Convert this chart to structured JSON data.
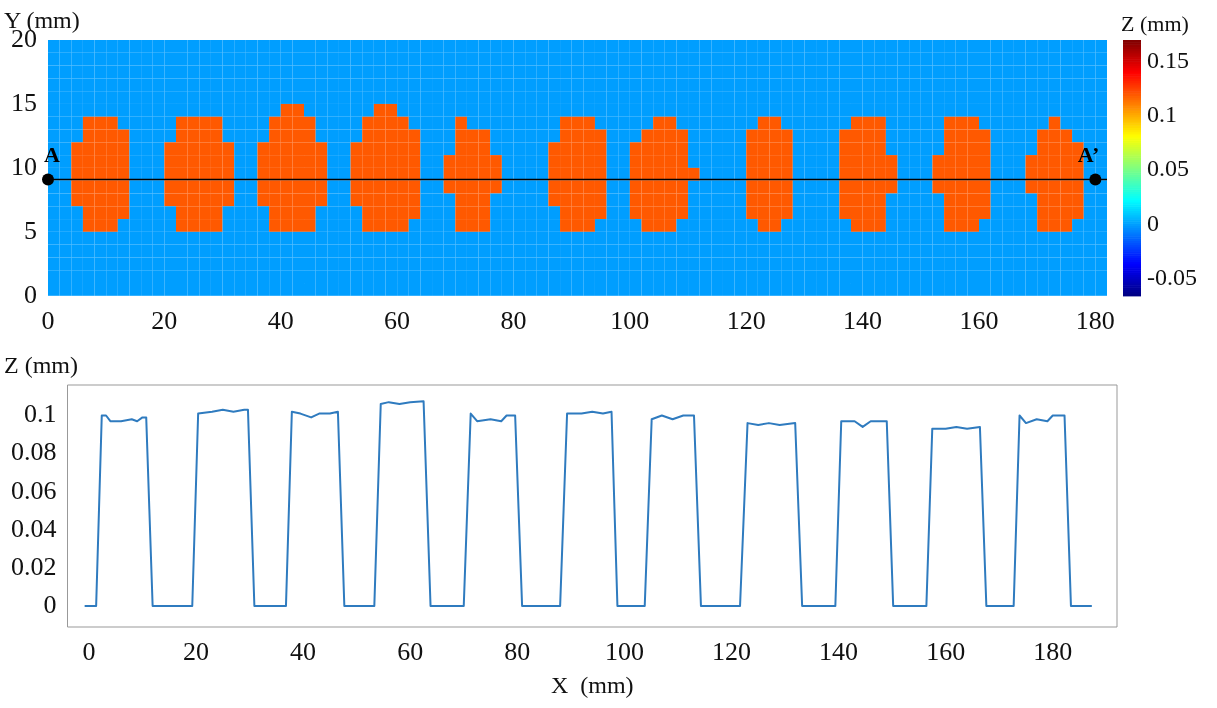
{
  "chart_data": [
    {
      "type": "heatmap",
      "ylabel": "Y (mm)",
      "clabel": "Z (mm)",
      "xlim": [
        0,
        182
      ],
      "ylim": [
        0,
        20
      ],
      "xticks": [
        0,
        20,
        40,
        60,
        80,
        100,
        120,
        140,
        160,
        180
      ],
      "yticks": [
        0,
        5,
        10,
        15,
        20
      ],
      "clim": [
        -0.066,
        0.17
      ],
      "cticks": [
        -0.05,
        0,
        0.05,
        0.1,
        0.15
      ],
      "ref_lines": [
        {
          "axis": "y",
          "value": 9.1,
          "color": "#000000"
        }
      ],
      "annotations": [
        {
          "text": "A",
          "x": 0,
          "y": 9.1
        },
        {
          "text": "A’",
          "x": 180,
          "y": 9.1
        }
      ],
      "cells": [
        [
          0,
          0,
          0,
          0,
          0,
          0,
          0,
          0,
          0,
          0,
          0,
          0,
          0,
          0,
          0,
          0,
          0,
          0,
          0,
          0,
          0,
          0,
          0,
          0,
          0,
          0,
          0,
          0,
          0,
          0,
          0,
          0,
          0,
          0,
          0,
          0,
          0,
          0,
          0,
          0,
          0,
          0,
          0,
          0,
          0,
          0,
          0,
          0,
          0,
          0,
          0,
          0,
          0,
          0,
          0,
          0,
          0,
          0,
          0,
          0,
          0,
          0,
          0,
          0,
          0,
          0,
          0,
          0,
          0,
          0,
          0,
          0,
          0,
          0,
          0,
          0,
          0,
          0,
          0,
          0,
          0,
          0,
          0,
          0,
          0,
          0,
          0,
          0,
          0,
          0,
          0
        ],
        [
          0,
          0,
          0,
          0,
          0,
          0,
          0,
          0,
          0,
          0,
          0,
          0,
          0,
          0,
          0,
          0,
          0,
          0,
          0,
          0,
          0,
          0,
          0,
          0,
          0,
          0,
          0,
          0,
          0,
          0,
          0,
          0,
          0,
          0,
          0,
          0,
          0,
          0,
          0,
          0,
          0,
          0,
          0,
          0,
          0,
          0,
          0,
          0,
          0,
          0,
          0,
          0,
          0,
          0,
          0,
          0,
          0,
          0,
          0,
          0,
          0,
          0,
          0,
          0,
          0,
          0,
          0,
          0,
          0,
          0,
          0,
          0,
          0,
          0,
          0,
          0,
          0,
          0,
          0,
          0,
          0,
          0,
          0,
          0,
          0,
          0,
          0,
          0,
          0,
          0,
          0
        ],
        [
          0,
          0,
          0,
          0,
          0,
          0,
          0,
          0,
          0,
          0,
          0,
          0,
          0,
          0,
          0,
          0,
          0,
          0,
          0,
          0,
          0,
          0,
          0,
          0,
          0,
          0,
          0,
          0,
          0,
          0,
          0,
          0,
          0,
          0,
          0,
          0,
          0,
          0,
          0,
          0,
          0,
          0,
          0,
          0,
          0,
          0,
          0,
          0,
          0,
          0,
          0,
          0,
          0,
          0,
          0,
          0,
          0,
          0,
          0,
          0,
          0,
          0,
          0,
          0,
          0,
          0,
          0,
          0,
          0,
          0,
          0,
          0,
          0,
          0,
          0,
          0,
          0,
          0,
          0,
          0,
          0,
          0,
          0,
          0,
          0,
          0,
          0,
          0,
          0,
          0,
          0
        ],
        [
          0,
          0,
          0,
          0,
          0,
          0,
          0,
          0,
          0,
          0,
          0,
          0,
          0,
          0,
          0,
          0,
          0,
          0,
          0,
          0,
          0,
          0,
          0,
          0,
          0,
          0,
          0,
          0,
          0,
          0,
          0,
          0,
          0,
          0,
          0,
          0,
          0,
          0,
          0,
          0,
          0,
          0,
          0,
          0,
          0,
          0,
          0,
          0,
          0,
          0,
          0,
          0,
          0,
          0,
          0,
          0,
          0,
          0,
          0,
          0,
          0,
          0,
          0,
          0,
          0,
          0,
          0,
          0,
          0,
          0,
          0,
          0,
          0,
          0,
          0,
          0,
          0,
          0,
          0,
          0,
          0,
          0,
          0,
          0,
          0,
          0,
          0,
          0,
          0,
          0,
          0
        ],
        [
          0,
          0,
          0,
          0,
          0,
          0,
          0,
          0,
          0,
          0,
          0,
          0,
          0,
          0,
          0,
          0,
          0,
          0,
          0,
          0,
          0,
          0,
          0,
          0,
          0,
          0,
          0,
          0,
          0,
          0,
          0,
          0,
          0,
          0,
          0,
          0,
          0,
          0,
          0,
          0,
          0,
          0,
          0,
          0,
          0,
          0,
          0,
          0,
          0,
          0,
          0,
          0,
          0,
          0,
          0,
          0,
          0,
          0,
          0,
          0,
          0,
          0,
          0,
          0,
          0,
          0,
          0,
          0,
          0,
          0,
          0,
          0,
          0,
          0,
          0,
          0,
          0,
          0,
          0,
          0,
          0,
          0,
          0,
          0,
          0,
          0,
          0,
          0,
          0,
          0,
          0
        ],
        [
          0,
          0,
          0,
          0,
          0,
          0,
          0,
          0,
          0,
          0,
          0,
          0,
          0,
          0,
          0,
          0,
          0,
          0,
          0,
          0,
          0.12,
          0.12,
          0,
          0,
          0,
          0,
          0,
          0,
          0.12,
          0.12,
          0,
          0,
          0,
          0,
          0,
          0,
          0,
          0,
          0,
          0,
          0,
          0,
          0,
          0,
          0,
          0,
          0,
          0,
          0,
          0,
          0,
          0,
          0,
          0,
          0,
          0,
          0,
          0,
          0,
          0,
          0,
          0,
          0,
          0,
          0,
          0,
          0,
          0,
          0,
          0,
          0,
          0,
          0,
          0,
          0,
          0,
          0,
          0,
          0,
          0,
          0,
          0,
          0,
          0,
          0,
          0,
          0,
          0,
          0,
          0,
          0
        ],
        [
          0,
          0,
          0,
          0.12,
          0.12,
          0.12,
          0,
          0,
          0,
          0,
          0,
          0.12,
          0.12,
          0.12,
          0.12,
          0,
          0,
          0,
          0,
          0.12,
          0.12,
          0.12,
          0.12,
          0,
          0,
          0,
          0,
          0.12,
          0.12,
          0.12,
          0.12,
          0,
          0,
          0,
          0,
          0.12,
          0,
          0,
          0,
          0,
          0,
          0,
          0,
          0,
          0.12,
          0.12,
          0.12,
          0,
          0,
          0,
          0,
          0,
          0.12,
          0.12,
          0,
          0,
          0,
          0,
          0,
          0,
          0,
          0.12,
          0.12,
          0,
          0,
          0,
          0,
          0,
          0,
          0.12,
          0.12,
          0.12,
          0,
          0,
          0,
          0,
          0,
          0.12,
          0.12,
          0.12,
          0,
          0,
          0,
          0,
          0,
          0,
          0.12,
          0,
          0,
          0,
          0
        ],
        [
          0,
          0,
          0,
          0.12,
          0.12,
          0.12,
          0.12,
          0,
          0,
          0,
          0,
          0.12,
          0.12,
          0.12,
          0.12,
          0,
          0,
          0,
          0,
          0.12,
          0.12,
          0.12,
          0.12,
          0,
          0,
          0,
          0,
          0.12,
          0.12,
          0.12,
          0.12,
          0.12,
          0,
          0,
          0,
          0.12,
          0.12,
          0.12,
          0,
          0,
          0,
          0,
          0,
          0,
          0.12,
          0.12,
          0.12,
          0.12,
          0,
          0,
          0,
          0.12,
          0.12,
          0.12,
          0.12,
          0,
          0,
          0,
          0,
          0,
          0.12,
          0.12,
          0.12,
          0.12,
          0,
          0,
          0,
          0,
          0.12,
          0.12,
          0.12,
          0.12,
          0,
          0,
          0,
          0,
          0,
          0.12,
          0.12,
          0.12,
          0.12,
          0,
          0,
          0,
          0,
          0.12,
          0.12,
          0.12,
          0,
          0,
          0
        ],
        [
          0,
          0,
          0.12,
          0.12,
          0.12,
          0.12,
          0.12,
          0,
          0,
          0,
          0.12,
          0.12,
          0.12,
          0.12,
          0.12,
          0.12,
          0,
          0,
          0.12,
          0.12,
          0.12,
          0.12,
          0.12,
          0.12,
          0,
          0,
          0.12,
          0.12,
          0.12,
          0.12,
          0.12,
          0.12,
          0,
          0,
          0,
          0.12,
          0.12,
          0.12,
          0,
          0,
          0,
          0,
          0,
          0.12,
          0.12,
          0.12,
          0.12,
          0.12,
          0,
          0,
          0.12,
          0.12,
          0.12,
          0.12,
          0.12,
          0,
          0,
          0,
          0,
          0,
          0.12,
          0.12,
          0.12,
          0.12,
          0,
          0,
          0,
          0,
          0.12,
          0.12,
          0.12,
          0.12,
          0,
          0,
          0,
          0,
          0,
          0.12,
          0.12,
          0.12,
          0.12,
          0,
          0,
          0,
          0,
          0.12,
          0.12,
          0.12,
          0.12,
          0,
          0
        ],
        [
          0,
          0,
          0.12,
          0.12,
          0.12,
          0.12,
          0.12,
          0,
          0,
          0,
          0.12,
          0.12,
          0.12,
          0.12,
          0.12,
          0.12,
          0,
          0,
          0.12,
          0.12,
          0.12,
          0.12,
          0.12,
          0.12,
          0,
          0,
          0.12,
          0.12,
          0.12,
          0.12,
          0.12,
          0.12,
          0,
          0,
          0.12,
          0.12,
          0.12,
          0.12,
          0.12,
          0,
          0,
          0,
          0,
          0.12,
          0.12,
          0.12,
          0.12,
          0.12,
          0,
          0,
          0.12,
          0.12,
          0.12,
          0.12,
          0.12,
          0,
          0,
          0,
          0,
          0,
          0.12,
          0.12,
          0.12,
          0.12,
          0,
          0,
          0,
          0,
          0.12,
          0.12,
          0.12,
          0.12,
          0.12,
          0,
          0,
          0,
          0.12,
          0.12,
          0.12,
          0.12,
          0.12,
          0,
          0,
          0,
          0.12,
          0.12,
          0.12,
          0.12,
          0.12,
          0,
          0
        ],
        [
          0,
          0,
          0.12,
          0.12,
          0.12,
          0.12,
          0.12,
          0,
          0,
          0,
          0.12,
          0.12,
          0.12,
          0.12,
          0.12,
          0.12,
          0,
          0,
          0.12,
          0.12,
          0.12,
          0.12,
          0.12,
          0.12,
          0,
          0,
          0.12,
          0.12,
          0.12,
          0.12,
          0.12,
          0.12,
          0,
          0,
          0.12,
          0.12,
          0.12,
          0.12,
          0.12,
          0,
          0,
          0,
          0,
          0.12,
          0.12,
          0.12,
          0.12,
          0.12,
          0,
          0,
          0.12,
          0.12,
          0.12,
          0.12,
          0.12,
          0.12,
          0,
          0,
          0,
          0,
          0.12,
          0.12,
          0.12,
          0.12,
          0,
          0,
          0,
          0,
          0.12,
          0.12,
          0.12,
          0.12,
          0.12,
          0,
          0,
          0,
          0.12,
          0.12,
          0.12,
          0.12,
          0.12,
          0,
          0,
          0,
          0.12,
          0.12,
          0.12,
          0.12,
          0.12,
          0,
          0
        ],
        [
          0,
          0,
          0.12,
          0.12,
          0.12,
          0.12,
          0.12,
          0,
          0,
          0,
          0.12,
          0.12,
          0.12,
          0.12,
          0.12,
          0.12,
          0,
          0,
          0.12,
          0.12,
          0.12,
          0.12,
          0.12,
          0.12,
          0,
          0,
          0.12,
          0.12,
          0.12,
          0.12,
          0.12,
          0.12,
          0,
          0,
          0.12,
          0.12,
          0.12,
          0.12,
          0.12,
          0,
          0,
          0,
          0,
          0.12,
          0.12,
          0.12,
          0.12,
          0.12,
          0,
          0,
          0.12,
          0.12,
          0.12,
          0.12,
          0.12,
          0,
          0,
          0,
          0,
          0,
          0.12,
          0.12,
          0.12,
          0.12,
          0,
          0,
          0,
          0,
          0.12,
          0.12,
          0.12,
          0.12,
          0.12,
          0,
          0,
          0,
          0.12,
          0.12,
          0.12,
          0.12,
          0.12,
          0,
          0,
          0,
          0.12,
          0.12,
          0.12,
          0.12,
          0.12,
          0,
          0
        ],
        [
          0,
          0,
          0.12,
          0.12,
          0.12,
          0.12,
          0.12,
          0,
          0,
          0,
          0.12,
          0.12,
          0.12,
          0.12,
          0.12,
          0.12,
          0,
          0,
          0.12,
          0.12,
          0.12,
          0.12,
          0.12,
          0.12,
          0,
          0,
          0.12,
          0.12,
          0.12,
          0.12,
          0.12,
          0.12,
          0,
          0,
          0,
          0.12,
          0.12,
          0.12,
          0,
          0,
          0,
          0,
          0,
          0.12,
          0.12,
          0.12,
          0.12,
          0.12,
          0,
          0,
          0.12,
          0.12,
          0.12,
          0.12,
          0.12,
          0,
          0,
          0,
          0,
          0,
          0.12,
          0.12,
          0.12,
          0.12,
          0,
          0,
          0,
          0,
          0.12,
          0.12,
          0.12,
          0.12,
          0,
          0,
          0,
          0,
          0,
          0.12,
          0.12,
          0.12,
          0.12,
          0,
          0,
          0,
          0,
          0.12,
          0.12,
          0.12,
          0.12,
          0,
          0
        ],
        [
          0,
          0,
          0,
          0.12,
          0.12,
          0.12,
          0.12,
          0,
          0,
          0,
          0,
          0.12,
          0.12,
          0.12,
          0.12,
          0,
          0,
          0,
          0,
          0.12,
          0.12,
          0.12,
          0.12,
          0,
          0,
          0,
          0,
          0.12,
          0.12,
          0.12,
          0.12,
          0.12,
          0,
          0,
          0,
          0.12,
          0.12,
          0.12,
          0,
          0,
          0,
          0,
          0,
          0,
          0.12,
          0.12,
          0.12,
          0.12,
          0,
          0,
          0.12,
          0.12,
          0.12,
          0.12,
          0.12,
          0,
          0,
          0,
          0,
          0,
          0.12,
          0.12,
          0.12,
          0.12,
          0,
          0,
          0,
          0,
          0.12,
          0.12,
          0.12,
          0.12,
          0,
          0,
          0,
          0,
          0,
          0.12,
          0.12,
          0.12,
          0.12,
          0,
          0,
          0,
          0,
          0.12,
          0.12,
          0.12,
          0.12,
          0,
          0
        ],
        [
          0,
          0,
          0,
          0.12,
          0.12,
          0.12,
          0,
          0,
          0,
          0,
          0,
          0.12,
          0.12,
          0.12,
          0.12,
          0,
          0,
          0,
          0,
          0.12,
          0.12,
          0.12,
          0.12,
          0,
          0,
          0,
          0,
          0.12,
          0.12,
          0.12,
          0.12,
          0,
          0,
          0,
          0,
          0.12,
          0.12,
          0.12,
          0,
          0,
          0,
          0,
          0,
          0,
          0.12,
          0.12,
          0.12,
          0,
          0,
          0,
          0,
          0.12,
          0.12,
          0.12,
          0,
          0,
          0,
          0,
          0,
          0,
          0,
          0.12,
          0.12,
          0,
          0,
          0,
          0,
          0,
          0,
          0.12,
          0.12,
          0.12,
          0,
          0,
          0,
          0,
          0,
          0.12,
          0.12,
          0.12,
          0,
          0,
          0,
          0,
          0,
          0.12,
          0.12,
          0.12,
          0,
          0,
          0
        ],
        [
          0,
          0,
          0,
          0,
          0,
          0,
          0,
          0,
          0,
          0,
          0,
          0,
          0,
          0,
          0,
          0,
          0,
          0,
          0,
          0,
          0,
          0,
          0,
          0,
          0,
          0,
          0,
          0,
          0,
          0,
          0,
          0,
          0,
          0,
          0,
          0,
          0,
          0,
          0,
          0,
          0,
          0,
          0,
          0,
          0,
          0,
          0,
          0,
          0,
          0,
          0,
          0,
          0,
          0,
          0,
          0,
          0,
          0,
          0,
          0,
          0,
          0,
          0,
          0,
          0,
          0,
          0,
          0,
          0,
          0,
          0,
          0,
          0,
          0,
          0,
          0,
          0,
          0,
          0,
          0,
          0,
          0,
          0,
          0,
          0,
          0,
          0,
          0,
          0,
          0,
          0
        ],
        [
          0,
          0,
          0,
          0,
          0,
          0,
          0,
          0,
          0,
          0,
          0,
          0,
          0,
          0,
          0,
          0,
          0,
          0,
          0,
          0,
          0,
          0,
          0,
          0,
          0,
          0,
          0,
          0,
          0,
          0,
          0,
          0,
          0,
          0,
          0,
          0,
          0,
          0,
          0,
          0,
          0,
          0,
          0,
          0,
          0,
          0,
          0,
          0,
          0,
          0,
          0,
          0,
          0,
          0,
          0,
          0,
          0,
          0,
          0,
          0,
          0,
          0,
          0,
          0,
          0,
          0,
          0,
          0,
          0,
          0,
          0,
          0,
          0,
          0,
          0,
          0,
          0,
          0,
          0,
          0,
          0,
          0,
          0,
          0,
          0,
          0,
          0,
          0,
          0,
          0,
          0
        ],
        [
          0,
          0,
          0,
          0,
          0,
          0,
          0,
          0,
          0,
          0,
          0,
          0,
          0,
          0,
          0,
          0,
          0,
          0,
          0,
          0,
          0,
          0,
          0,
          0,
          0,
          0,
          0,
          0,
          0,
          0,
          0,
          0,
          0,
          0,
          0,
          0,
          0,
          0,
          0,
          0,
          0,
          0,
          0,
          0,
          0,
          0,
          0,
          0,
          0,
          0,
          0,
          0,
          0,
          0,
          0,
          0,
          0,
          0,
          0,
          0,
          0,
          0,
          0,
          0,
          0,
          0,
          0,
          0,
          0,
          0,
          0,
          0,
          0,
          0,
          0,
          0,
          0,
          0,
          0,
          0,
          0,
          0,
          0,
          0,
          0,
          0,
          0,
          0,
          0,
          0,
          0
        ],
        [
          0,
          0,
          0,
          0,
          0,
          0,
          0,
          0,
          0,
          0,
          0,
          0,
          0,
          0,
          0,
          0,
          0,
          0,
          0,
          0,
          0,
          0,
          0,
          0,
          0,
          0,
          0,
          0,
          0,
          0,
          0,
          0,
          0,
          0,
          0,
          0,
          0,
          0,
          0,
          0,
          0,
          0,
          0,
          0,
          0,
          0,
          0,
          0,
          0,
          0,
          0,
          0,
          0,
          0,
          0,
          0,
          0,
          0,
          0,
          0,
          0,
          0,
          0,
          0,
          0,
          0,
          0,
          0,
          0,
          0,
          0,
          0,
          0,
          0,
          0,
          0,
          0,
          0,
          0,
          0,
          0,
          0,
          0,
          0,
          0,
          0,
          0,
          0,
          0,
          0,
          0
        ],
        [
          0,
          0,
          0,
          0,
          0,
          0,
          0,
          0,
          0,
          0,
          0,
          0,
          0,
          0,
          0,
          0,
          0,
          0,
          0,
          0,
          0,
          0,
          0,
          0,
          0,
          0,
          0,
          0,
          0,
          0,
          0,
          0,
          0,
          0,
          0,
          0,
          0,
          0,
          0,
          0,
          0,
          0,
          0,
          0,
          0,
          0,
          0,
          0,
          0,
          0,
          0,
          0,
          0,
          0,
          0,
          0,
          0,
          0,
          0,
          0,
          0,
          0,
          0,
          0,
          0,
          0,
          0,
          0,
          0,
          0,
          0,
          0,
          0,
          0,
          0,
          0,
          0,
          0,
          0,
          0,
          0,
          0,
          0,
          0,
          0,
          0,
          0,
          0,
          0,
          0,
          0
        ]
      ]
    },
    {
      "type": "line",
      "xlabel": "X  (mm)",
      "ylabel": "Z (mm)",
      "xlim": [
        -4,
        192
      ],
      "ylim": [
        -0.011,
        0.116
      ],
      "xticks": [
        0,
        20,
        40,
        60,
        80,
        100,
        120,
        140,
        160,
        180
      ],
      "yticks": [
        0,
        0.02,
        0.04,
        0.06,
        0.08,
        0.1
      ],
      "marker": "none",
      "series": [
        {
          "color": "#2f7bbf",
          "x": [
            -0.8,
            1.35,
            2.4,
            3.2,
            4,
            6,
            8,
            9,
            10,
            10.7,
            11.9,
            19.3,
            20.4,
            23,
            25,
            27,
            29,
            29.7,
            30.9,
            36.8,
            37.9,
            39.5,
            41.5,
            43,
            45,
            46.5,
            47.7,
            53.3,
            54.5,
            56,
            58,
            60,
            62.5,
            63.8,
            70,
            71.3,
            72.5,
            75,
            77,
            78,
            79.6,
            80.9,
            88,
            89.3,
            92,
            94,
            96,
            97.6,
            98.7,
            103.8,
            105.1,
            107,
            109,
            111,
            113,
            114.3,
            121.6,
            123,
            125,
            127,
            129,
            131.9,
            133.2,
            139.4,
            140.5,
            143,
            144.5,
            146,
            149,
            150.2,
            156.4,
            157.5,
            160,
            162,
            164,
            166.4,
            167.6,
            172.7,
            173.8,
            175,
            177,
            179,
            180,
            182.2,
            183.4,
            187.3
          ],
          "values": [
            0,
            0,
            0.1,
            0.1,
            0.097,
            0.097,
            0.098,
            0.097,
            0.099,
            0.099,
            0,
            0,
            0.101,
            0.102,
            0.103,
            0.102,
            0.103,
            0.103,
            0,
            0,
            0.102,
            0.101,
            0.099,
            0.101,
            0.101,
            0.102,
            0,
            0,
            0.106,
            0.107,
            0.106,
            0.107,
            0.1075,
            0,
            0,
            0.101,
            0.097,
            0.098,
            0.097,
            0.1,
            0.1,
            0,
            0,
            0.101,
            0.101,
            0.102,
            0.101,
            0.102,
            0,
            0,
            0.098,
            0.1,
            0.098,
            0.1,
            0.1,
            0,
            0,
            0.096,
            0.095,
            0.096,
            0.095,
            0.096,
            0,
            0,
            0.097,
            0.097,
            0.094,
            0.097,
            0.097,
            0,
            0,
            0.093,
            0.093,
            0.094,
            0.093,
            0.094,
            0,
            0,
            0.1,
            0.096,
            0.098,
            0.097,
            0.1,
            0.1,
            0,
            0
          ]
        }
      ]
    }
  ]
}
